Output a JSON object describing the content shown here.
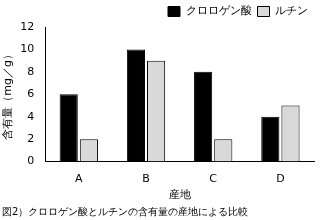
{
  "chart_data": {
    "type": "bar",
    "title": "図2）クロロゲン酸とルチンの含有量の産地による比較",
    "x_label": "産地",
    "y_label": "含有量（mg／g）",
    "categories": [
      "A",
      "B",
      "C",
      "D"
    ],
    "series": [
      {
        "name": "クロロゲン酸",
        "color": "#000000",
        "values": [
          6,
          10,
          8,
          4
        ]
      },
      {
        "name": "ルチン",
        "color": "#d9d9d9",
        "values": [
          2,
          9,
          2,
          5
        ]
      }
    ],
    "ylim": [
      0,
      12
    ],
    "yticks": [
      0,
      2,
      4,
      6,
      8,
      10,
      12
    ],
    "grid": false,
    "legend": "top-right"
  }
}
